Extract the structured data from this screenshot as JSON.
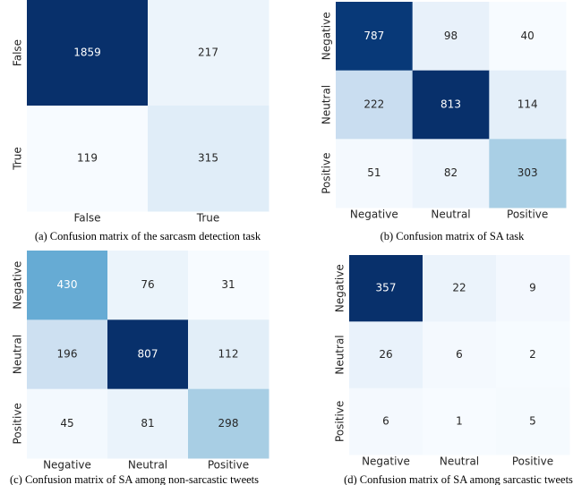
{
  "chart_data": [
    {
      "type": "heatmap",
      "cmap": "Blues",
      "caption": "(a) Confusion matrix of the sarcasm detection task",
      "x_categories": [
        "False",
        "True"
      ],
      "y_categories": [
        "False",
        "True"
      ],
      "values": [
        [
          1859,
          217
        ],
        [
          119,
          315
        ]
      ]
    },
    {
      "type": "heatmap",
      "cmap": "Blues",
      "caption": "(b) Confusion matrix of SA task",
      "x_categories": [
        "Negative",
        "Neutral",
        "Positive"
      ],
      "y_categories": [
        "Negative",
        "Neutral",
        "Positive"
      ],
      "values": [
        [
          787,
          98,
          40
        ],
        [
          222,
          813,
          114
        ],
        [
          51,
          82,
          303
        ]
      ]
    },
    {
      "type": "heatmap",
      "cmap": "Blues",
      "caption": "(c) Confusion matrix of SA among non-sarcastic tweets",
      "x_categories": [
        "Negative",
        "Neutral",
        "Positive"
      ],
      "y_categories": [
        "Negative",
        "Neutral",
        "Positive"
      ],
      "values": [
        [
          430,
          76,
          31
        ],
        [
          196,
          807,
          112
        ],
        [
          45,
          81,
          298
        ]
      ]
    },
    {
      "type": "heatmap",
      "cmap": "Blues",
      "caption": "(d) Confusion matrix of SA among sarcastic tweets",
      "x_categories": [
        "Negative",
        "Neutral",
        "Positive"
      ],
      "y_categories": [
        "Negative",
        "Neutral",
        "Positive"
      ],
      "values": [
        [
          357,
          22,
          9
        ],
        [
          26,
          6,
          2
        ],
        [
          6,
          1,
          5
        ]
      ]
    }
  ]
}
